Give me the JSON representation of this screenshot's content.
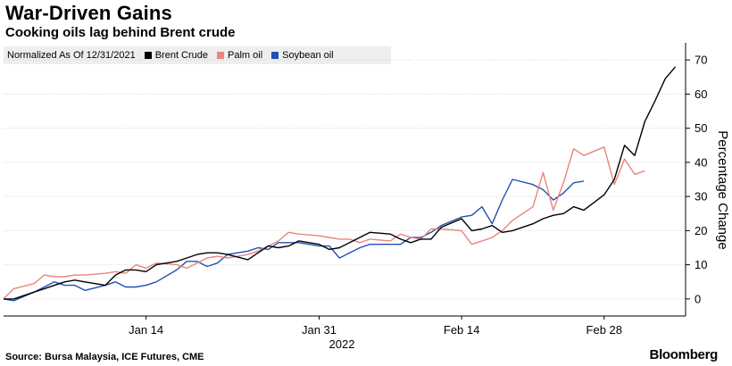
{
  "header": {
    "title": "War-Driven Gains",
    "subtitle": "Cooking oils lag behind Brent crude"
  },
  "legend": {
    "note": "Normalized As Of 12/31/2021"
  },
  "footer": {
    "source": "Source: Bursa Malaysia, ICE Futures, CME",
    "brand": "Bloomberg"
  },
  "chart_data": {
    "type": "line",
    "title": "War-Driven Gains",
    "subtitle": "Cooking oils lag behind Brent crude",
    "xlabel": "2022",
    "ylabel": "Percentage Change",
    "ylim": [
      -5,
      75
    ],
    "yticks": [
      0,
      10,
      20,
      30,
      40,
      50,
      60,
      70
    ],
    "xticks": [
      {
        "date": "2022-01-14",
        "label": "Jan 14"
      },
      {
        "date": "2022-01-31",
        "label": "Jan 31"
      },
      {
        "date": "2022-02-14",
        "label": "Feb 14"
      },
      {
        "date": "2022-02-28",
        "label": "Feb 28"
      }
    ],
    "xlim": [
      "2021-12-31",
      "2022-03-08"
    ],
    "grid": "horizontal",
    "legend_position": "top-left",
    "series": [
      {
        "name": "Brent Crude",
        "color": "#000000",
        "points": [
          [
            "2021-12-31",
            0
          ],
          [
            "2022-01-01",
            0
          ],
          [
            "2022-01-03",
            2
          ],
          [
            "2022-01-04",
            3
          ],
          [
            "2022-01-05",
            4
          ],
          [
            "2022-01-06",
            5
          ],
          [
            "2022-01-07",
            5.5
          ],
          [
            "2022-01-08",
            5
          ],
          [
            "2022-01-10",
            4
          ],
          [
            "2022-01-11",
            7
          ],
          [
            "2022-01-12",
            8.5
          ],
          [
            "2022-01-13",
            8.5
          ],
          [
            "2022-01-14",
            8
          ],
          [
            "2022-01-15",
            10
          ],
          [
            "2022-01-17",
            11
          ],
          [
            "2022-01-18",
            12
          ],
          [
            "2022-01-19",
            13
          ],
          [
            "2022-01-20",
            13.5
          ],
          [
            "2022-01-21",
            13.5
          ],
          [
            "2022-01-22",
            13
          ],
          [
            "2022-01-24",
            11.5
          ],
          [
            "2022-01-25",
            13.5
          ],
          [
            "2022-01-26",
            15.5
          ],
          [
            "2022-01-27",
            15
          ],
          [
            "2022-01-28",
            15.5
          ],
          [
            "2022-01-29",
            17
          ],
          [
            "2022-01-31",
            16
          ],
          [
            "2022-02-01",
            14.5
          ],
          [
            "2022-02-02",
            15
          ],
          [
            "2022-02-03",
            16.5
          ],
          [
            "2022-02-04",
            18
          ],
          [
            "2022-02-05",
            19.5
          ],
          [
            "2022-02-07",
            19
          ],
          [
            "2022-02-08",
            17.5
          ],
          [
            "2022-02-09",
            16.5
          ],
          [
            "2022-02-10",
            17.5
          ],
          [
            "2022-02-11",
            17.5
          ],
          [
            "2022-02-12",
            21
          ],
          [
            "2022-02-14",
            23.5
          ],
          [
            "2022-02-15",
            20
          ],
          [
            "2022-02-16",
            20.5
          ],
          [
            "2022-02-17",
            21.5
          ],
          [
            "2022-02-18",
            19.5
          ],
          [
            "2022-02-19",
            20
          ],
          [
            "2022-02-21",
            22
          ],
          [
            "2022-02-22",
            23.5
          ],
          [
            "2022-02-23",
            24.5
          ],
          [
            "2022-02-24",
            25
          ],
          [
            "2022-02-25",
            27
          ],
          [
            "2022-02-26",
            26
          ],
          [
            "2022-02-28",
            30.5
          ],
          [
            "2022-03-01",
            35
          ],
          [
            "2022-03-02",
            45
          ],
          [
            "2022-03-03",
            42
          ],
          [
            "2022-03-04",
            52
          ],
          [
            "2022-03-05",
            58
          ],
          [
            "2022-03-06",
            64.5
          ],
          [
            "2022-03-07",
            68
          ]
        ]
      },
      {
        "name": "Palm oil",
        "color": "#e8857c",
        "points": [
          [
            "2021-12-31",
            0
          ],
          [
            "2022-01-01",
            3
          ],
          [
            "2022-01-03",
            4.5
          ],
          [
            "2022-01-04",
            7
          ],
          [
            "2022-01-05",
            6.5
          ],
          [
            "2022-01-06",
            6.5
          ],
          [
            "2022-01-07",
            7
          ],
          [
            "2022-01-08",
            7
          ],
          [
            "2022-01-10",
            7.5
          ],
          [
            "2022-01-11",
            8
          ],
          [
            "2022-01-12",
            7.5
          ],
          [
            "2022-01-13",
            10
          ],
          [
            "2022-01-14",
            9
          ],
          [
            "2022-01-15",
            10.5
          ],
          [
            "2022-01-17",
            10
          ],
          [
            "2022-01-18",
            9
          ],
          [
            "2022-01-19",
            10.5
          ],
          [
            "2022-01-20",
            12
          ],
          [
            "2022-01-21",
            12.5
          ],
          [
            "2022-01-22",
            12
          ],
          [
            "2022-01-24",
            13
          ],
          [
            "2022-01-25",
            14
          ],
          [
            "2022-01-26",
            15.5
          ],
          [
            "2022-01-27",
            17
          ],
          [
            "2022-01-28",
            19.5
          ],
          [
            "2022-01-29",
            19
          ],
          [
            "2022-01-31",
            18.5
          ],
          [
            "2022-02-01",
            18
          ],
          [
            "2022-02-02",
            17.5
          ],
          [
            "2022-02-03",
            17.5
          ],
          [
            "2022-02-04",
            16.5
          ],
          [
            "2022-02-05",
            17.5
          ],
          [
            "2022-02-07",
            17
          ],
          [
            "2022-02-08",
            19
          ],
          [
            "2022-02-09",
            18
          ],
          [
            "2022-02-10",
            17.5
          ],
          [
            "2022-02-11",
            20.5
          ],
          [
            "2022-02-12",
            20.5
          ],
          [
            "2022-02-14",
            20
          ],
          [
            "2022-02-15",
            16
          ],
          [
            "2022-02-16",
            17
          ],
          [
            "2022-02-17",
            18
          ],
          [
            "2022-02-18",
            20
          ],
          [
            "2022-02-19",
            23
          ],
          [
            "2022-02-21",
            27
          ],
          [
            "2022-02-22",
            37
          ],
          [
            "2022-02-23",
            26
          ],
          [
            "2022-02-24",
            34
          ],
          [
            "2022-02-25",
            44
          ],
          [
            "2022-02-26",
            42
          ],
          [
            "2022-02-28",
            44.5
          ],
          [
            "2022-03-01",
            33.5
          ],
          [
            "2022-03-02",
            41
          ],
          [
            "2022-03-03",
            36.5
          ],
          [
            "2022-03-04",
            37.5
          ]
        ]
      },
      {
        "name": "Soybean oil",
        "color": "#2150b5",
        "points": [
          [
            "2021-12-31",
            0
          ],
          [
            "2022-01-01",
            -0.5
          ],
          [
            "2022-01-03",
            2
          ],
          [
            "2022-01-04",
            3.5
          ],
          [
            "2022-01-05",
            5
          ],
          [
            "2022-01-06",
            4
          ],
          [
            "2022-01-07",
            4
          ],
          [
            "2022-01-08",
            2.5
          ],
          [
            "2022-01-10",
            4
          ],
          [
            "2022-01-11",
            5
          ],
          [
            "2022-01-12",
            3.5
          ],
          [
            "2022-01-13",
            3.5
          ],
          [
            "2022-01-14",
            4
          ],
          [
            "2022-01-15",
            5
          ],
          [
            "2022-01-17",
            8.5
          ],
          [
            "2022-01-18",
            11
          ],
          [
            "2022-01-19",
            11
          ],
          [
            "2022-01-20",
            9.5
          ],
          [
            "2022-01-21",
            10.5
          ],
          [
            "2022-01-22",
            13
          ],
          [
            "2022-01-24",
            14
          ],
          [
            "2022-01-25",
            15
          ],
          [
            "2022-01-26",
            14.5
          ],
          [
            "2022-01-27",
            16.5
          ],
          [
            "2022-01-28",
            16.5
          ],
          [
            "2022-01-29",
            16.5
          ],
          [
            "2022-01-31",
            15.5
          ],
          [
            "2022-02-01",
            15.5
          ],
          [
            "2022-02-02",
            12
          ],
          [
            "2022-02-03",
            13.5
          ],
          [
            "2022-02-04",
            15
          ],
          [
            "2022-02-05",
            16
          ],
          [
            "2022-02-07",
            16
          ],
          [
            "2022-02-08",
            16
          ],
          [
            "2022-02-09",
            18
          ],
          [
            "2022-02-10",
            18
          ],
          [
            "2022-02-11",
            19.5
          ],
          [
            "2022-02-12",
            21.5
          ],
          [
            "2022-02-14",
            24
          ],
          [
            "2022-02-15",
            24.5
          ],
          [
            "2022-02-16",
            27
          ],
          [
            "2022-02-17",
            22
          ],
          [
            "2022-02-18",
            29
          ],
          [
            "2022-02-19",
            35
          ],
          [
            "2022-02-21",
            33.5
          ],
          [
            "2022-02-22",
            32
          ],
          [
            "2022-02-23",
            29
          ],
          [
            "2022-02-24",
            31
          ],
          [
            "2022-02-25",
            34
          ],
          [
            "2022-02-26",
            34.5
          ]
        ]
      }
    ]
  }
}
